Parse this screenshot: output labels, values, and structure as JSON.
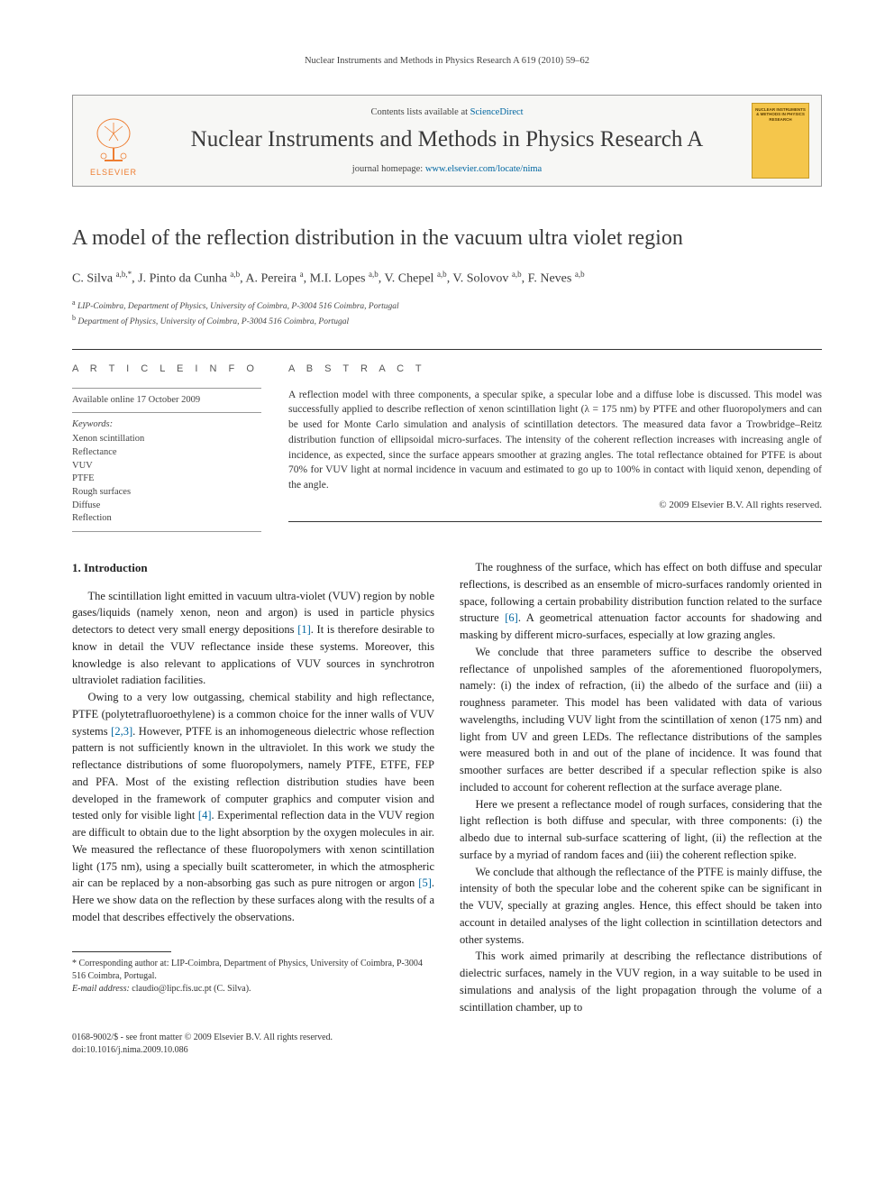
{
  "running_header": "Nuclear Instruments and Methods in Physics Research A 619 (2010) 59–62",
  "masthead": {
    "contents_prefix": "Contents lists available at ",
    "contents_link": "ScienceDirect",
    "journal_title": "Nuclear Instruments and Methods in Physics Research A",
    "homepage_prefix": "journal homepage: ",
    "homepage_link": "www.elsevier.com/locate/nima",
    "publisher": "ELSEVIER",
    "cover_label": "NUCLEAR INSTRUMENTS & METHODS IN PHYSICS RESEARCH"
  },
  "article": {
    "title": "A model of the reflection distribution in the vacuum ultra violet region",
    "authors_html": "C. Silva <sup>a,b,*</sup>, J. Pinto da Cunha <sup>a,b</sup>, A. Pereira <sup>a</sup>, M.I. Lopes <sup>a,b</sup>, V. Chepel <sup>a,b</sup>, V. Solovov <sup>a,b</sup>, F. Neves <sup>a,b</sup>",
    "affiliations": [
      "<sup>a</sup> LIP-Coimbra, Department of Physics, University of Coimbra, P-3004 516 Coimbra, Portugal",
      "<sup>b</sup> Department of Physics, University of Coimbra, P-3004 516 Coimbra, Portugal"
    ]
  },
  "article_info": {
    "heading": "A R T I C L E  I N F O",
    "available": "Available online 17 October 2009",
    "keywords_label": "Keywords:",
    "keywords": [
      "Xenon scintillation",
      "Reflectance",
      "VUV",
      "PTFE",
      "Rough surfaces",
      "Diffuse",
      "Reflection"
    ]
  },
  "abstract": {
    "heading": "A B S T R A C T",
    "text": "A reflection model with three components, a specular spike, a specular lobe and a diffuse lobe is discussed. This model was successfully applied to describe reflection of xenon scintillation light (λ = 175 nm) by PTFE and other fluoropolymers and can be used for Monte Carlo simulation and analysis of scintillation detectors. The measured data favor a Trowbridge–Reitz distribution function of ellipsoidal micro-surfaces. The intensity of the coherent reflection increases with increasing angle of incidence, as expected, since the surface appears smoother at grazing angles. The total reflectance obtained for PTFE is about 70% for VUV light at normal incidence in vacuum and estimated to go up to 100% in contact with liquid xenon, depending of the angle.",
    "copyright": "© 2009 Elsevier B.V. All rights reserved."
  },
  "body": {
    "section1_heading": "1. Introduction",
    "p1": "The scintillation light emitted in vacuum ultra-violet (VUV) region by noble gases/liquids (namely xenon, neon and argon) is used in particle physics detectors to detect very small energy depositions <span class=\"cite\">[1]</span>. It is therefore desirable to know in detail the VUV reflectance inside these systems. Moreover, this knowledge is also relevant to applications of VUV sources in synchrotron ultraviolet radiation facilities.",
    "p2": "Owing to a very low outgassing, chemical stability and high reflectance, PTFE (polytetrafluoroethylene) is a common choice for the inner walls of VUV systems <span class=\"cite\">[2,3]</span>. However, PTFE is an inhomogeneous dielectric whose reflection pattern is not sufficiently known in the ultraviolet. In this work we study the reflectance distributions of some fluoropolymers, namely PTFE, ETFE, FEP and PFA. Most of the existing reflection distribution studies have been developed in the framework of computer graphics and computer vision and tested only for visible light <span class=\"cite\">[4]</span>. Experimental reflection data in the VUV region are difficult to obtain due to the light absorption by the oxygen molecules in air. We measured the reflectance of these fluoropolymers with xenon scintillation light (175 nm), using a specially built scatterometer, in which the atmospheric air can be replaced by a non-absorbing gas such as pure nitrogen or argon <span class=\"cite\">[5]</span>. Here we show data on the reflection by these surfaces along with the results of a model that describes effectively the observations.",
    "p3": "The roughness of the surface, which has effect on both diffuse and specular reflections, is described as an ensemble of micro-surfaces randomly oriented in space, following a certain probability distribution function related to the surface structure <span class=\"cite\">[6]</span>. A geometrical attenuation factor accounts for shadowing and masking by different micro-surfaces, especially at low grazing angles.",
    "p4": "We conclude that three parameters suffice to describe the observed reflectance of unpolished samples of the aforementioned fluoropolymers, namely: (i) the index of refraction, (ii) the albedo of the surface and (iii) a roughness parameter. This model has been validated with data of various wavelengths, including VUV light from the scintillation of xenon (175 nm) and light from UV and green LEDs. The reflectance distributions of the samples were measured both in and out of the plane of incidence. It was found that smoother surfaces are better described if a specular reflection spike is also included to account for coherent reflection at the surface average plane.",
    "p5": "Here we present a reflectance model of rough surfaces, considering that the light reflection is both diffuse and specular, with three components: (i) the albedo due to internal sub-surface scattering of light, (ii) the reflection at the surface by a myriad of random faces and (iii) the coherent reflection spike.",
    "p6": "We conclude that although the reflectance of the PTFE is mainly diffuse, the intensity of both the specular lobe and the coherent spike can be significant in the VUV, specially at grazing angles. Hence, this effect should be taken into account in detailed analyses of the light collection in scintillation detectors and other systems.",
    "p7": "This work aimed primarily at describing the reflectance distributions of dielectric surfaces, namely in the VUV region, in a way suitable to be used in simulations and analysis of the light propagation through the volume of a scintillation chamber, up to"
  },
  "footnote": {
    "corr": "* Corresponding author at: LIP-Coimbra, Department of Physics, University of Coimbra, P-3004 516 Coimbra, Portugal.",
    "email_label": "E-mail address:",
    "email": "claudio@lipc.fis.uc.pt (C. Silva)."
  },
  "bottom": {
    "issn": "0168-9002/$ - see front matter © 2009 Elsevier B.V. All rights reserved.",
    "doi": "doi:10.1016/j.nima.2009.10.086"
  },
  "colors": {
    "link": "#0066a1",
    "text": "#222222",
    "rule": "#333333",
    "elsevier_orange": "#ee7d31",
    "cover_bg": "#f5c64b"
  }
}
